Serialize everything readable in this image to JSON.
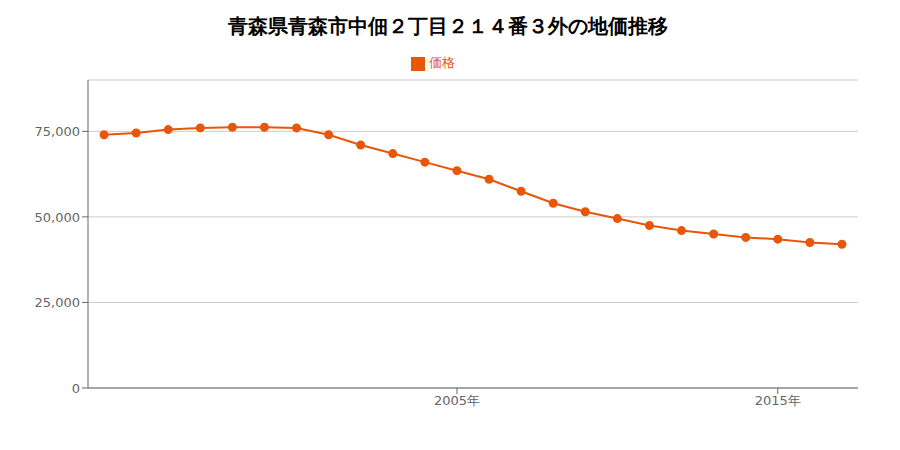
{
  "chart_data": {
    "type": "line",
    "title": "青森県青森市中佃２丁目２１４番３外の地価推移",
    "x": [
      1994,
      1995,
      1996,
      1997,
      1998,
      1999,
      2000,
      2001,
      2002,
      2003,
      2004,
      2005,
      2006,
      2007,
      2008,
      2009,
      2010,
      2011,
      2012,
      2013,
      2014,
      2015,
      2016,
      2017
    ],
    "series": [
      {
        "name": "価格",
        "color": "#e8560a",
        "marker": "circle",
        "values": [
          74000,
          74500,
          75500,
          76000,
          76200,
          76200,
          76000,
          74000,
          71000,
          68500,
          66000,
          63500,
          61000,
          57500,
          54000,
          51500,
          49500,
          47500,
          46000,
          45000,
          44000,
          43500,
          42500,
          42000
        ]
      }
    ],
    "xlim": [
      1993.5,
      2017.5
    ],
    "xticks": [
      {
        "value": 2005,
        "label": "2005年"
      },
      {
        "value": 2015,
        "label": "2015年"
      }
    ],
    "ylim": [
      0,
      90000
    ],
    "yticks": [
      0,
      {
        "value": 25000,
        "label": "25,000"
      },
      {
        "value": 50000,
        "label": "50,000"
      },
      {
        "value": 75000,
        "label": "75,000"
      }
    ],
    "grid": true,
    "legend": "top"
  }
}
